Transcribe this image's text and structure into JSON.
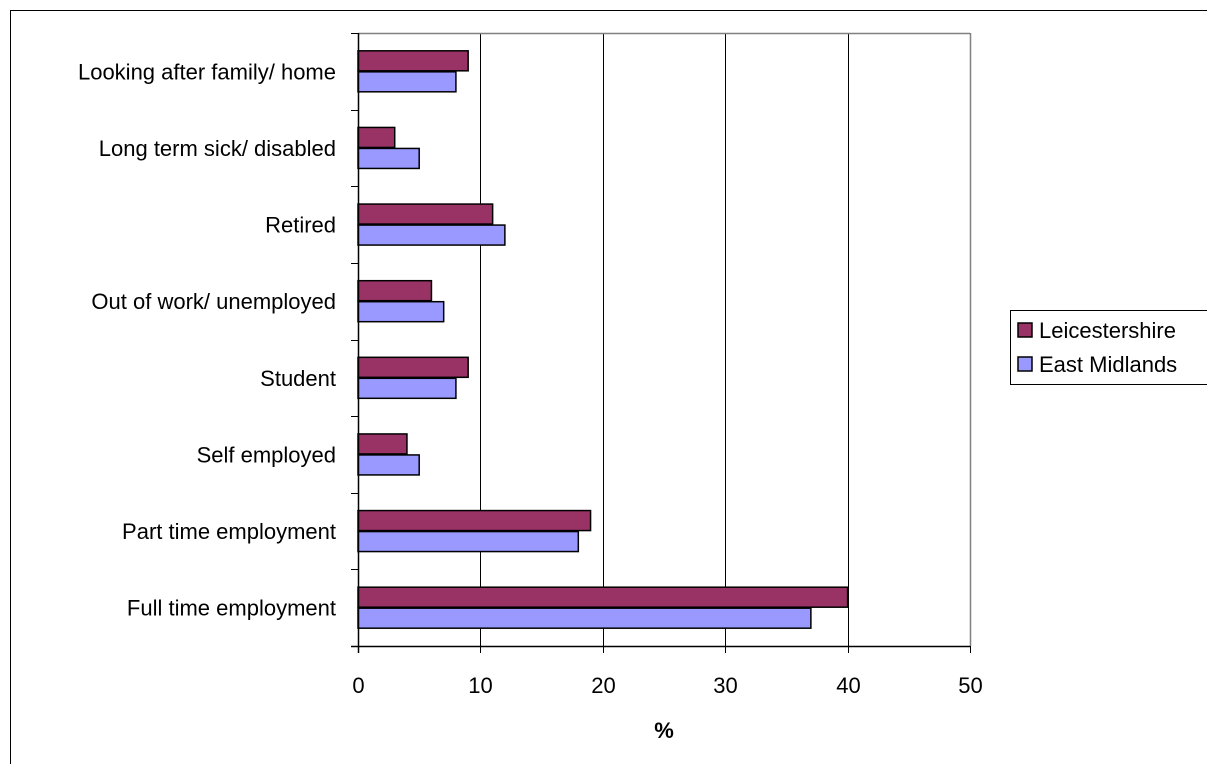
{
  "chart_data": {
    "type": "bar",
    "orientation": "horizontal",
    "title": "",
    "xlabel": "%",
    "ylabel": "",
    "xlim": [
      0,
      50
    ],
    "x_ticks": [
      "0",
      "10",
      "20",
      "30",
      "40",
      "50"
    ],
    "grid": true,
    "legend_position": "right",
    "categories": [
      "Looking after family/ home",
      "Long term sick/ disabled",
      "Retired",
      "Out of work/ unemployed",
      "Student",
      "Self employed",
      "Part time employment",
      "Full time employment"
    ],
    "series": [
      {
        "name": "Leicestershire",
        "color": "#993366",
        "values": [
          9,
          3,
          11,
          6,
          9,
          4,
          19,
          40
        ]
      },
      {
        "name": "East Midlands",
        "color": "#9999FF",
        "values": [
          8,
          5,
          12,
          7,
          8,
          5,
          18,
          37
        ]
      }
    ]
  }
}
